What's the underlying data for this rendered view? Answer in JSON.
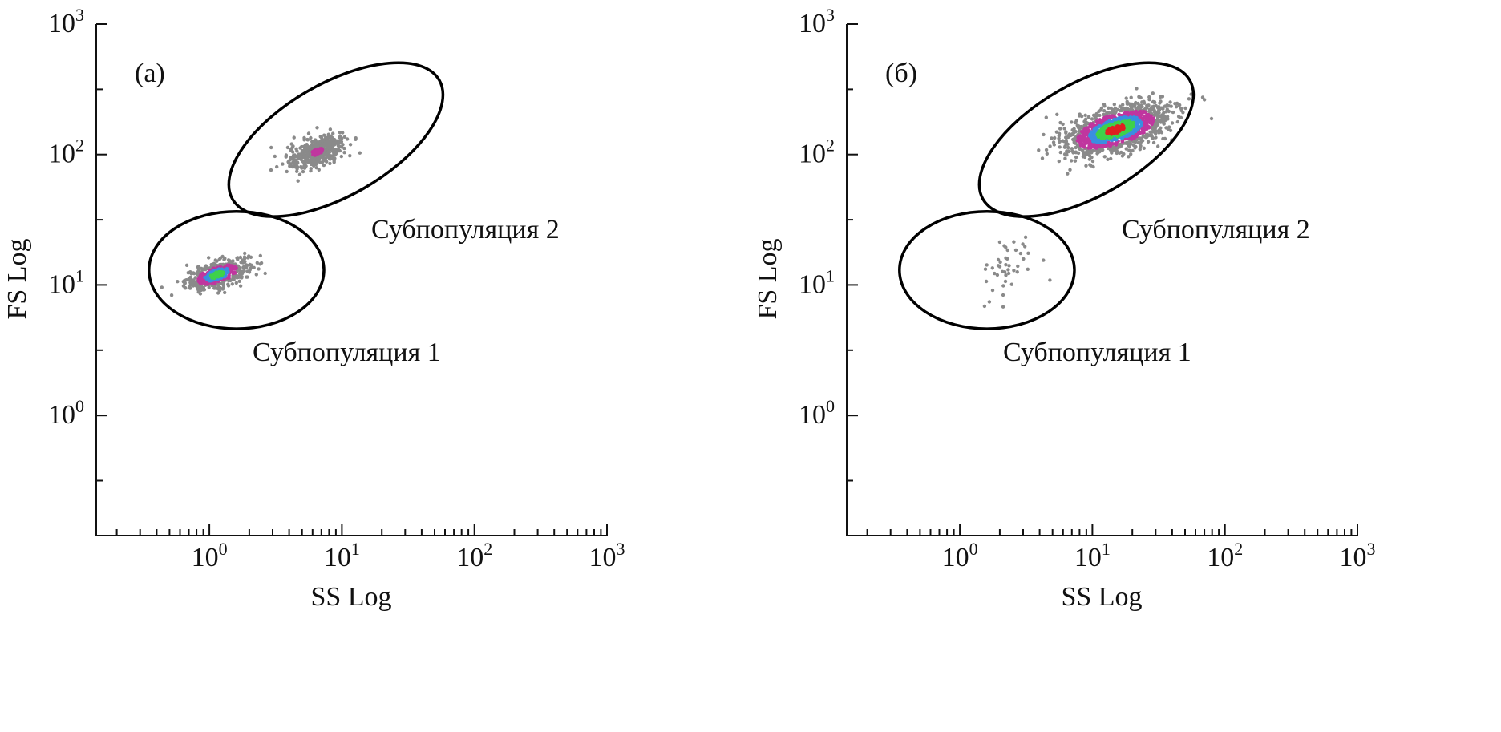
{
  "chart_data": [
    {
      "type": "scatter",
      "panel_label": "(а)",
      "xlabel": "SS Log",
      "ylabel": "FS Log",
      "x_scale": "log",
      "y_scale": "log",
      "xlim": [
        0.14,
        1000
      ],
      "ylim": [
        0.12,
        1000
      ],
      "x_ticks": [
        {
          "base": "10",
          "exp": "0"
        },
        {
          "base": "10",
          "exp": "1"
        },
        {
          "base": "10",
          "exp": "2"
        },
        {
          "base": "10",
          "exp": "3"
        }
      ],
      "y_ticks": [
        {
          "base": "10",
          "exp": "0"
        },
        {
          "base": "10",
          "exp": "1"
        },
        {
          "base": "10",
          "exp": "2"
        },
        {
          "base": "10",
          "exp": "3"
        }
      ],
      "grid": false,
      "gates": [
        {
          "label": "Субпопуляция 1",
          "center": [
            1.6,
            13
          ],
          "semi_axis_x_decades": 0.66,
          "semi_axis_y_decades": 0.45,
          "rotation_deg": 0
        },
        {
          "label": "Субпопуляция 2",
          "center": [
            9,
            130
          ],
          "semi_axis_x_decades": 0.9,
          "semi_axis_y_decades": 0.43,
          "rotation_deg": -30
        }
      ],
      "clusters": [
        {
          "center": [
            1.15,
            12
          ],
          "spread_x_decades": 0.12,
          "spread_y_decades": 0.06,
          "count": 500,
          "density": "high"
        },
        {
          "center": [
            6.5,
            105
          ],
          "spread_x_decades": 0.11,
          "spread_y_decades": 0.07,
          "count": 450,
          "density": "medium"
        }
      ]
    },
    {
      "type": "scatter",
      "panel_label": "(б)",
      "xlabel": "SS Log",
      "ylabel": "FS Log",
      "x_scale": "log",
      "y_scale": "log",
      "xlim": [
        0.14,
        1000
      ],
      "ylim": [
        0.12,
        1000
      ],
      "x_ticks": [
        {
          "base": "10",
          "exp": "0"
        },
        {
          "base": "10",
          "exp": "1"
        },
        {
          "base": "10",
          "exp": "2"
        },
        {
          "base": "10",
          "exp": "3"
        }
      ],
      "y_ticks": [
        {
          "base": "10",
          "exp": "0"
        },
        {
          "base": "10",
          "exp": "1"
        },
        {
          "base": "10",
          "exp": "2"
        },
        {
          "base": "10",
          "exp": "3"
        }
      ],
      "grid": false,
      "gates": [
        {
          "label": "Субпопуляция 1",
          "center": [
            1.6,
            13
          ],
          "semi_axis_x_decades": 0.66,
          "semi_axis_y_decades": 0.45,
          "rotation_deg": 0
        },
        {
          "label": "Субпопуляция 2",
          "center": [
            9,
            130
          ],
          "semi_axis_x_decades": 0.9,
          "semi_axis_y_decades": 0.43,
          "rotation_deg": -30
        }
      ],
      "clusters": [
        {
          "center": [
            15,
            155
          ],
          "spread_x_decades": 0.2,
          "spread_y_decades": 0.1,
          "count": 1400,
          "density": "very-high"
        },
        {
          "center": [
            2.3,
            14
          ],
          "spread_x_decades": 0.12,
          "spread_y_decades": 0.14,
          "count": 45,
          "density": "low"
        }
      ]
    }
  ],
  "colors": {
    "axis": "#111111",
    "gate_outline": "#000000",
    "density_low": "#8a8a8a",
    "density_mid": "#c0369f",
    "density_high": "#3a8fe0",
    "density_higher": "#3fd14a",
    "density_peak": "#e02020"
  }
}
